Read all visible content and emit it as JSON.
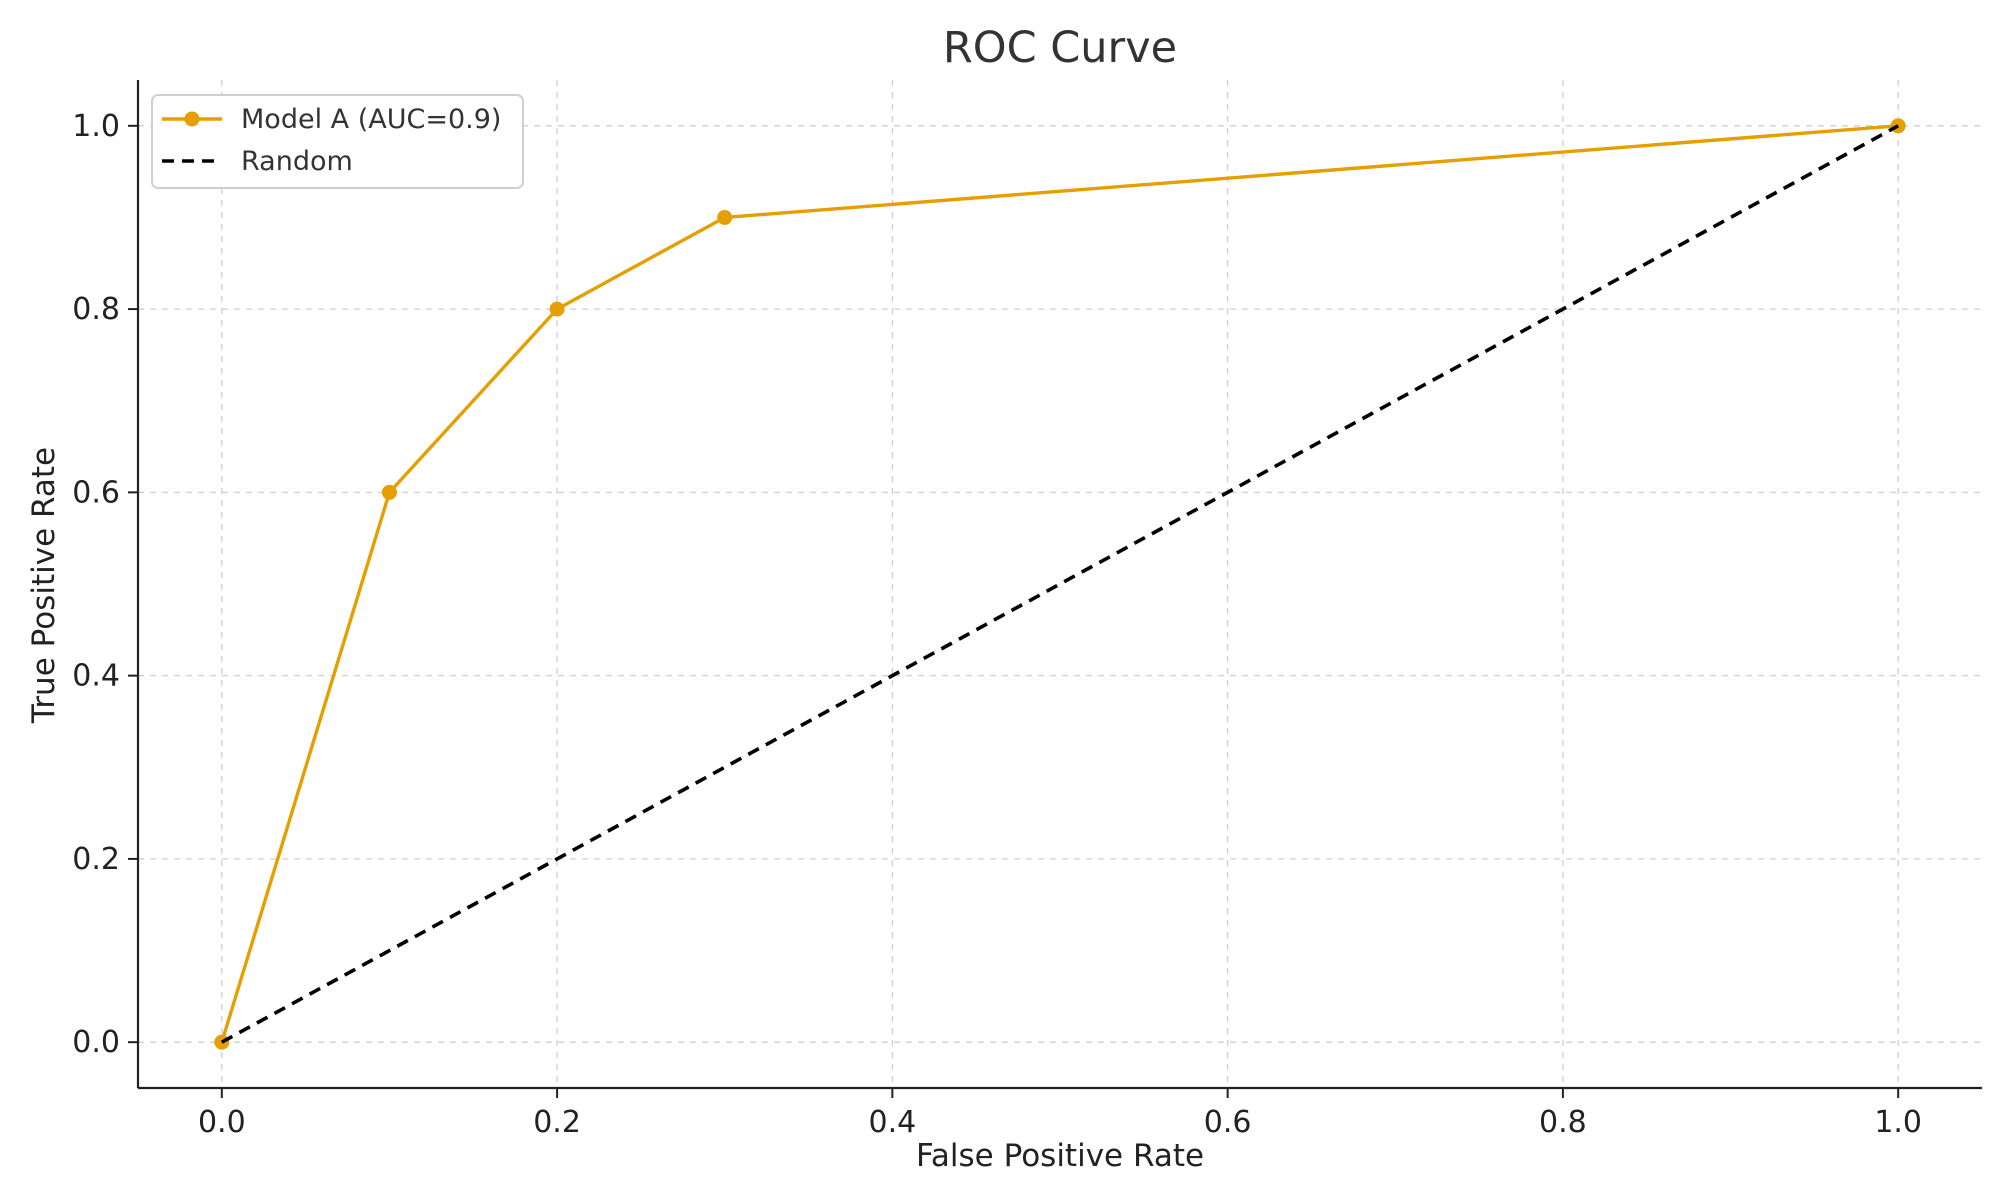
{
  "chart_data": {
    "type": "line",
    "title": "ROC Curve",
    "xlabel": "False Positive Rate",
    "ylabel": "True Positive Rate",
    "xlim": [
      -0.05,
      1.05
    ],
    "ylim": [
      -0.05,
      1.05
    ],
    "x_ticks": [
      "0.0",
      "0.2",
      "0.4",
      "0.6",
      "0.8",
      "1.0"
    ],
    "y_ticks": [
      "0.0",
      "0.2",
      "0.4",
      "0.6",
      "0.8",
      "1.0"
    ],
    "grid": true,
    "legend_position": "top-left",
    "series": [
      {
        "name": "Model A (AUC=0.9)",
        "color": "#E69F00",
        "line_style": "solid",
        "marker": "circle",
        "points": [
          {
            "x": 0.0,
            "y": 0.0
          },
          {
            "x": 0.1,
            "y": 0.6
          },
          {
            "x": 0.2,
            "y": 0.8
          },
          {
            "x": 0.3,
            "y": 0.9
          },
          {
            "x": 1.0,
            "y": 1.0
          }
        ]
      },
      {
        "name": "Random",
        "color": "#000000",
        "line_style": "dashed",
        "marker": "none",
        "points": [
          {
            "x": 0.0,
            "y": 0.0
          },
          {
            "x": 1.0,
            "y": 1.0
          }
        ]
      }
    ]
  }
}
